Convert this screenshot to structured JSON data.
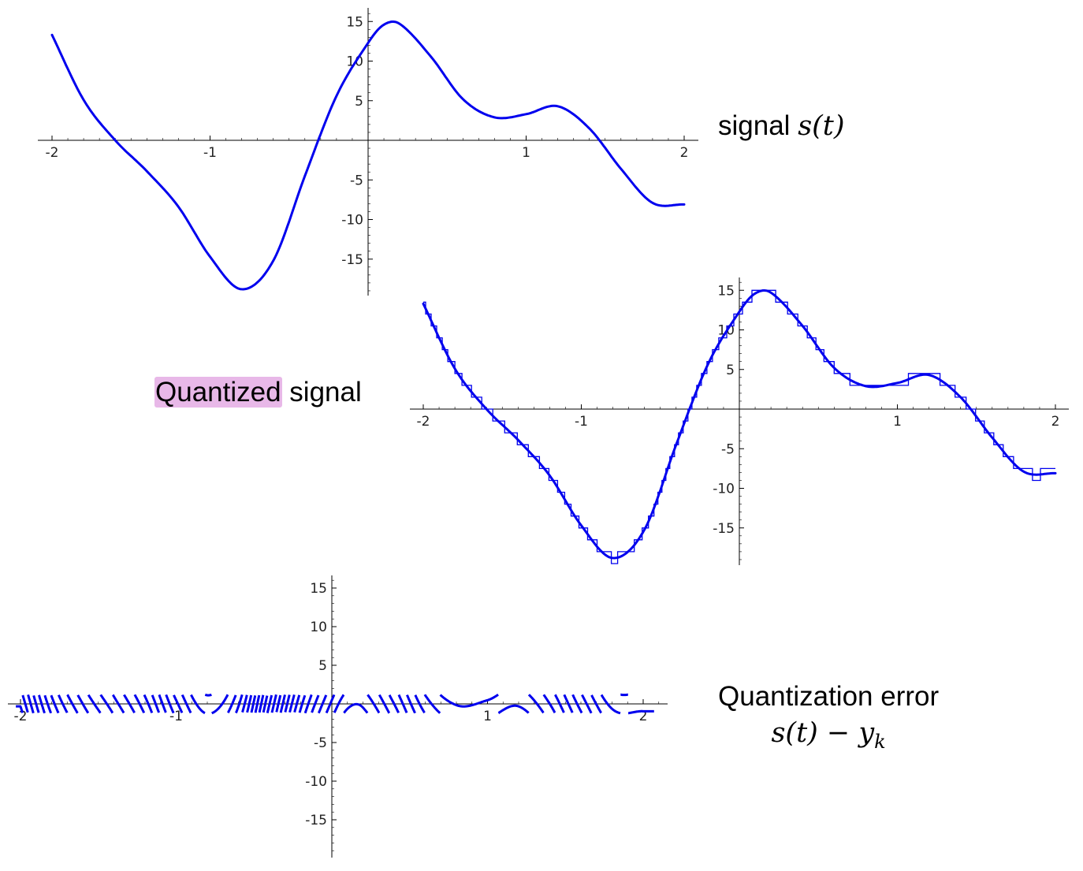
{
  "labels": {
    "signal_word": "signal",
    "signal_math": "s(t)",
    "quantized_word": "Quantized",
    "quantized_rest": "signal",
    "error_title": "Quantization error",
    "error_math": "s(t) − y",
    "error_sub": "k"
  },
  "colors": {
    "curve": "#0000ee",
    "highlight": "#e8b8e8"
  },
  "chart_data": [
    {
      "type": "line",
      "title": "",
      "xlabel": "",
      "ylabel": "",
      "xlim": [
        -2,
        2
      ],
      "ylim": [
        -19,
        16
      ],
      "x_ticks": [
        "-2",
        "-1",
        "1",
        "2"
      ],
      "y_ticks": [
        "15",
        "10",
        "5",
        "-5",
        "-10",
        "-15"
      ],
      "series": [
        {
          "x": [
            -2.0,
            -1.8,
            -1.6,
            -1.4,
            -1.2,
            -1.0,
            -0.8,
            -0.6,
            -0.4,
            -0.2,
            0.0,
            0.1,
            0.2,
            0.4,
            0.6,
            0.8,
            1.0,
            1.2,
            1.4,
            1.6,
            1.8,
            2.0
          ],
          "y": [
            13.3,
            5.1,
            0.0,
            -3.9,
            -8.4,
            -14.7,
            -18.8,
            -15.2,
            -4.5,
            5.6,
            12.3,
            14.6,
            14.7,
            10.5,
            5.2,
            2.9,
            3.3,
            4.3,
            1.5,
            -3.6,
            -7.9,
            -8.1
          ]
        }
      ]
    },
    {
      "type": "line",
      "title": "",
      "xlabel": "",
      "ylabel": "",
      "xlim": [
        -2,
        2
      ],
      "ylim": [
        -19,
        16
      ],
      "x_ticks": [
        "-2",
        "-1",
        "1",
        "2"
      ],
      "y_ticks": [
        "15",
        "10",
        "5",
        "-5",
        "-10",
        "-15"
      ],
      "quantization_step": 1.5,
      "series": [
        {
          "x": [
            -2.0,
            -1.8,
            -1.6,
            -1.4,
            -1.2,
            -1.0,
            -0.8,
            -0.6,
            -0.4,
            -0.2,
            0.0,
            0.1,
            0.2,
            0.4,
            0.6,
            0.8,
            1.0,
            1.2,
            1.4,
            1.6,
            1.8,
            2.0
          ],
          "y": [
            13.3,
            5.1,
            0.0,
            -3.9,
            -8.4,
            -14.7,
            -18.8,
            -15.2,
            -4.5,
            5.6,
            12.3,
            14.6,
            14.7,
            10.5,
            5.2,
            2.9,
            3.3,
            4.3,
            1.5,
            -3.6,
            -7.9,
            -8.1
          ]
        }
      ]
    },
    {
      "type": "line",
      "title": "",
      "xlabel": "",
      "ylabel": "",
      "xlim": [
        -2.1,
        2.1
      ],
      "ylim": [
        -19,
        16
      ],
      "x_ticks": [
        "-2",
        "-1",
        "1",
        "2"
      ],
      "y_ticks": [
        "15",
        "10",
        "5",
        "-5",
        "-10",
        "-15"
      ],
      "error_amplitude": 1.5
    }
  ]
}
